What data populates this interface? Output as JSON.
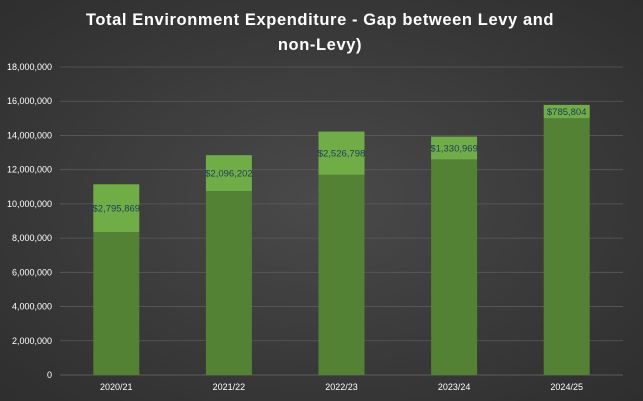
{
  "chart_data": {
    "type": "bar",
    "stacked": true,
    "title": "Total Environment Expenditure - Gap between Levy and non-Levy)",
    "title_lines": [
      "Total Environment Expenditure - Gap between Levy and",
      "non-Levy)"
    ],
    "categories": [
      "2020/21",
      "2021/22",
      "2022/23",
      "2023/24",
      "2024/25"
    ],
    "series": [
      {
        "color": "#548235",
        "values": [
          8350000,
          10750000,
          11700000,
          12600000,
          15000000
        ]
      },
      {
        "color": "#70ad47",
        "values": [
          2795869,
          2096202,
          2526798,
          1330969,
          785804
        ]
      }
    ],
    "data_labels": [
      "$2,795,869",
      "$2,096,202",
      "$2,526,798",
      "$1,330,969",
      "$785,804"
    ],
    "y_ticks": [
      0,
      2000000,
      4000000,
      6000000,
      8000000,
      10000000,
      12000000,
      14000000,
      16000000,
      18000000
    ],
    "y_tick_labels": [
      "0",
      "2,000,000",
      "4,000,000",
      "6,000,000",
      "8,000,000",
      "10,000,000",
      "12,000,000",
      "14,000,000",
      "16,000,000",
      "18,000,000"
    ],
    "ylim": [
      0,
      18000000
    ],
    "xlabel": "",
    "ylabel": "",
    "grid": true,
    "legend": "none",
    "colors": {
      "background": "#3a3a3a",
      "gridline": "#5a5a5a",
      "text": "#ffffff",
      "data_label": "#1f3a5a"
    }
  }
}
